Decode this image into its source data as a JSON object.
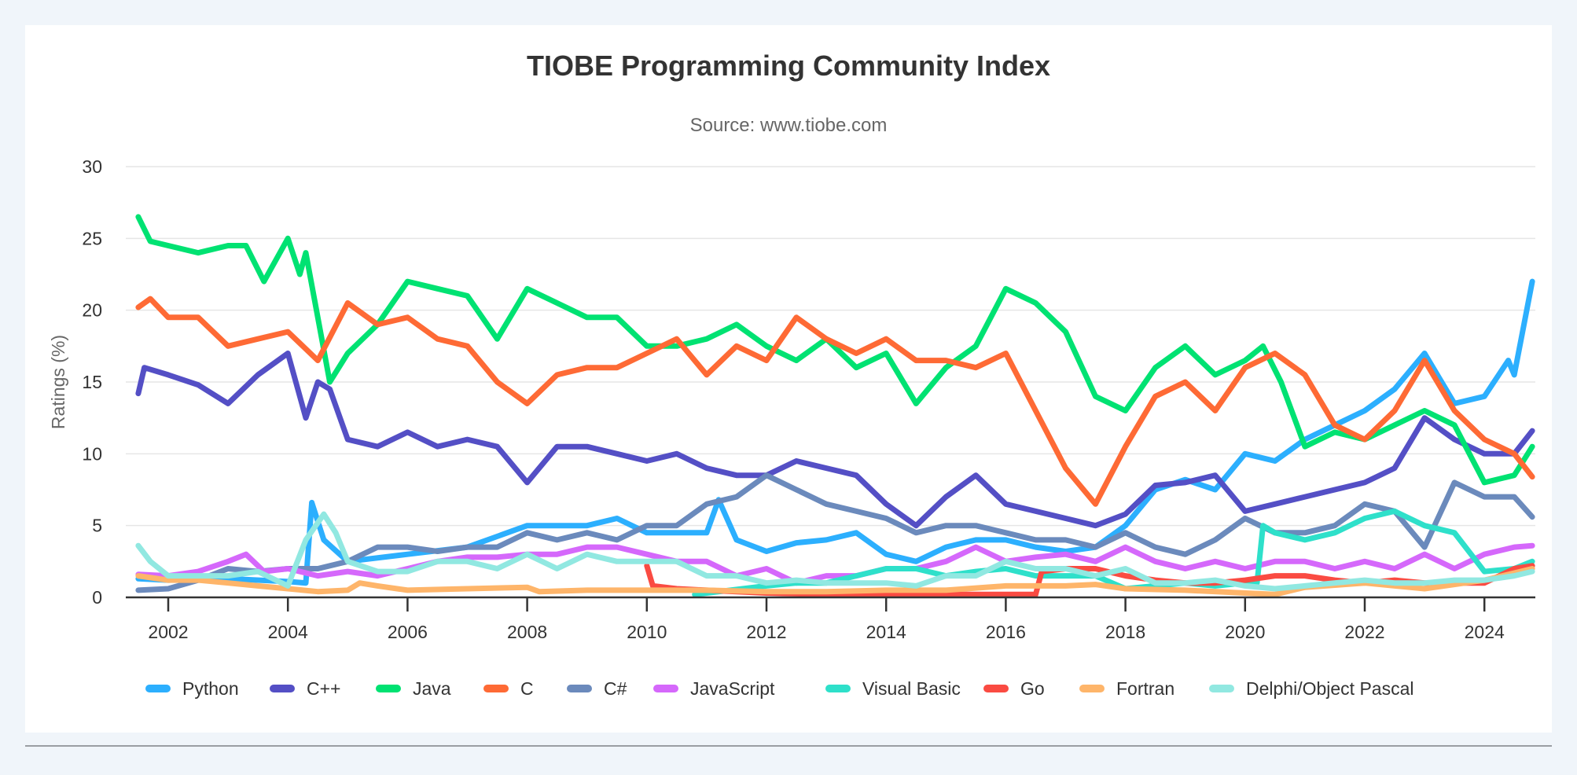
{
  "chart_data": {
    "type": "line",
    "title": "TIOBE Programming Community Index",
    "subtitle": "Source: www.tiobe.com",
    "xlabel": "",
    "ylabel": "Ratings (%)",
    "xlim": [
      2001.5,
      2024.8
    ],
    "ylim": [
      0,
      30
    ],
    "yticks": [
      0,
      5,
      10,
      15,
      20,
      25,
      30
    ],
    "xticks": [
      2002,
      2004,
      2006,
      2008,
      2010,
      2012,
      2014,
      2016,
      2018,
      2020,
      2022,
      2024
    ],
    "grid": true,
    "legend": "bottom",
    "series": [
      {
        "name": "Python",
        "color": "#2caffe",
        "x": [
          2001.5,
          2002,
          2003,
          2004,
          2004.3,
          2004.4,
          2004.6,
          2005,
          2006,
          2007,
          2008,
          2008.5,
          2009,
          2009.5,
          2010,
          2011,
          2011.2,
          2011.5,
          2012,
          2012.5,
          2013,
          2013.5,
          2014,
          2014.5,
          2015,
          2015.5,
          2016,
          2016.5,
          2017,
          2017.5,
          2018,
          2018.5,
          2019,
          2019.5,
          2020,
          2020.5,
          2021,
          2021.5,
          2022,
          2022.5,
          2023,
          2023.5,
          2024,
          2024.4,
          2024.5,
          2024.8
        ],
        "y": [
          1.3,
          1.2,
          1.3,
          1.1,
          1.0,
          6.6,
          4.0,
          2.5,
          3.0,
          3.5,
          5.0,
          5.0,
          5.0,
          5.5,
          4.5,
          4.5,
          6.8,
          4.0,
          3.2,
          3.8,
          4.0,
          4.5,
          3.0,
          2.5,
          3.5,
          4.0,
          4.0,
          3.5,
          3.2,
          3.5,
          5.0,
          7.5,
          8.2,
          7.5,
          10.0,
          9.5,
          11.0,
          12.0,
          13.0,
          14.5,
          17.0,
          13.5,
          14.0,
          16.5,
          15.5,
          22.0
        ]
      },
      {
        "name": "C++",
        "color": "#544fc5",
        "x": [
          2001.5,
          2001.6,
          2002,
          2002.5,
          2003,
          2003.5,
          2004,
          2004.3,
          2004.5,
          2004.7,
          2005,
          2005.5,
          2006,
          2006.5,
          2007,
          2007.5,
          2008,
          2008.5,
          2009,
          2009.5,
          2010,
          2010.5,
          2011,
          2011.5,
          2012,
          2012.5,
          2013,
          2013.5,
          2014,
          2014.5,
          2015,
          2015.5,
          2016,
          2016.5,
          2017,
          2017.5,
          2018,
          2018.5,
          2019,
          2019.5,
          2020,
          2020.5,
          2021,
          2021.5,
          2022,
          2022.5,
          2023,
          2023.5,
          2024,
          2024.5,
          2024.8
        ],
        "y": [
          14.2,
          16.0,
          15.5,
          14.8,
          13.5,
          15.5,
          17.0,
          12.5,
          15.0,
          14.5,
          11.0,
          10.5,
          11.5,
          10.5,
          11.0,
          10.5,
          8.0,
          10.5,
          10.5,
          10.0,
          9.5,
          10.0,
          9.0,
          8.5,
          8.5,
          9.5,
          9.0,
          8.5,
          6.5,
          5.0,
          7.0,
          8.5,
          6.5,
          6.0,
          5.5,
          5.0,
          5.8,
          7.8,
          8.0,
          8.5,
          6.0,
          6.5,
          7.0,
          7.5,
          8.0,
          9.0,
          12.5,
          11.0,
          10.0,
          10.0,
          11.6
        ]
      },
      {
        "name": "Java",
        "color": "#00e272",
        "x": [
          2001.5,
          2001.7,
          2002,
          2002.5,
          2003,
          2003.3,
          2003.6,
          2004,
          2004.2,
          2004.3,
          2004.7,
          2005,
          2005.5,
          2006,
          2006.5,
          2007,
          2007.5,
          2008,
          2008.5,
          2009,
          2009.5,
          2010,
          2010.5,
          2011,
          2011.5,
          2012,
          2012.5,
          2013,
          2013.5,
          2014,
          2014.5,
          2015,
          2015.5,
          2016,
          2016.5,
          2017,
          2017.5,
          2018,
          2018.5,
          2019,
          2019.5,
          2020,
          2020.3,
          2020.6,
          2021,
          2021.5,
          2022,
          2022.5,
          2023,
          2023.5,
          2024,
          2024.5,
          2024.8
        ],
        "y": [
          26.5,
          24.8,
          24.5,
          24.0,
          24.5,
          24.5,
          22.0,
          25.0,
          22.5,
          24.0,
          15.0,
          17.0,
          19.0,
          22.0,
          21.5,
          21.0,
          18.0,
          21.5,
          20.5,
          19.5,
          19.5,
          17.5,
          17.5,
          18.0,
          19.0,
          17.5,
          16.5,
          18.0,
          16.0,
          17.0,
          13.5,
          16.0,
          17.5,
          21.5,
          20.5,
          18.5,
          14.0,
          13.0,
          16.0,
          17.5,
          15.5,
          16.5,
          17.5,
          15.0,
          10.5,
          11.5,
          11.0,
          12.0,
          13.0,
          12.0,
          8.0,
          8.5,
          10.5
        ]
      },
      {
        "name": "C",
        "color": "#fe6a35",
        "x": [
          2001.5,
          2001.7,
          2002,
          2002.5,
          2003,
          2003.5,
          2004,
          2004.5,
          2005,
          2005.5,
          2006,
          2006.5,
          2007,
          2007.5,
          2008,
          2008.5,
          2009,
          2009.5,
          2010,
          2010.5,
          2011,
          2011.5,
          2012,
          2012.5,
          2013,
          2013.5,
          2014,
          2014.5,
          2015,
          2015.5,
          2016,
          2016.5,
          2017,
          2017.5,
          2018,
          2018.5,
          2019,
          2019.5,
          2020,
          2020.5,
          2021,
          2021.5,
          2022,
          2022.5,
          2023,
          2023.5,
          2024,
          2024.5,
          2024.8
        ],
        "y": [
          20.2,
          20.8,
          19.5,
          19.5,
          17.5,
          18.0,
          18.5,
          16.5,
          20.5,
          19.0,
          19.5,
          18.0,
          17.5,
          15.0,
          13.5,
          15.5,
          16.0,
          16.0,
          17.0,
          18.0,
          15.5,
          17.5,
          16.5,
          19.5,
          18.0,
          17.0,
          18.0,
          16.5,
          16.5,
          16.0,
          17.0,
          13.0,
          9.0,
          6.5,
          10.5,
          14.0,
          15.0,
          13.0,
          16.0,
          17.0,
          15.5,
          12.0,
          11.0,
          13.0,
          16.5,
          13.0,
          11.0,
          10.0,
          8.4
        ]
      },
      {
        "name": "C#",
        "color": "#6b8abc",
        "x": [
          2001.5,
          2002,
          2002.5,
          2003,
          2003.5,
          2004,
          2004.5,
          2005,
          2005.5,
          2006,
          2006.5,
          2007,
          2007.5,
          2008,
          2008.5,
          2009,
          2009.5,
          2010,
          2010.5,
          2011,
          2011.5,
          2012,
          2012.5,
          2013,
          2013.5,
          2014,
          2014.5,
          2015,
          2015.5,
          2016,
          2016.5,
          2017,
          2017.5,
          2018,
          2018.5,
          2019,
          2019.5,
          2020,
          2020.5,
          2021,
          2021.5,
          2022,
          2022.5,
          2023,
          2023.5,
          2024,
          2024.5,
          2024.8
        ],
        "y": [
          0.5,
          0.6,
          1.2,
          2.0,
          1.8,
          2.0,
          2.0,
          2.5,
          3.5,
          3.5,
          3.2,
          3.5,
          3.5,
          4.5,
          4.0,
          4.5,
          4.0,
          5.0,
          5.0,
          6.5,
          7.0,
          8.5,
          7.5,
          6.5,
          6.0,
          5.5,
          4.5,
          5.0,
          5.0,
          4.5,
          4.0,
          4.0,
          3.5,
          4.5,
          3.5,
          3.0,
          4.0,
          5.5,
          4.5,
          4.5,
          5.0,
          6.5,
          6.0,
          3.5,
          8.0,
          7.0,
          7.0,
          5.6
        ]
      },
      {
        "name": "JavaScript",
        "color": "#d568fb",
        "x": [
          2001.5,
          2002,
          2002.5,
          2003,
          2003.3,
          2003.6,
          2004,
          2004.5,
          2005,
          2005.5,
          2006,
          2006.5,
          2007,
          2007.5,
          2008,
          2008.5,
          2009,
          2009.5,
          2010,
          2010.5,
          2011,
          2011.5,
          2012,
          2012.5,
          2013,
          2013.5,
          2014,
          2014.5,
          2015,
          2015.5,
          2016,
          2016.5,
          2017,
          2017.5,
          2018,
          2018.5,
          2019,
          2019.5,
          2020,
          2020.5,
          2021,
          2021.5,
          2022,
          2022.5,
          2023,
          2023.5,
          2024,
          2024.5,
          2024.8
        ],
        "y": [
          1.6,
          1.5,
          1.8,
          2.5,
          3.0,
          1.8,
          2.0,
          1.5,
          1.8,
          1.5,
          2.0,
          2.5,
          2.8,
          2.8,
          3.0,
          3.0,
          3.5,
          3.5,
          3.0,
          2.5,
          2.5,
          1.5,
          2.0,
          1.0,
          1.5,
          1.5,
          2.0,
          2.0,
          2.5,
          3.5,
          2.5,
          2.8,
          3.0,
          2.5,
          3.5,
          2.5,
          2.0,
          2.5,
          2.0,
          2.5,
          2.5,
          2.0,
          2.5,
          2.0,
          3.0,
          2.0,
          3.0,
          3.5,
          3.6
        ]
      },
      {
        "name": "Visual Basic",
        "color": "#2ee0ca",
        "x": [
          2010.8,
          2011,
          2012,
          2012.5,
          2013,
          2013.5,
          2014,
          2014.5,
          2015,
          2015.5,
          2016,
          2016.5,
          2017,
          2017.5,
          2018,
          2018.5,
          2019,
          2019.5,
          2020,
          2020.2,
          2020.3,
          2020.5,
          2021,
          2021.5,
          2022,
          2022.5,
          2023,
          2023.5,
          2024,
          2024.5,
          2024.8
        ],
        "y": [
          0.2,
          0.3,
          0.8,
          1.0,
          1.0,
          1.5,
          2.0,
          2.0,
          1.5,
          1.8,
          2.0,
          1.5,
          1.5,
          1.5,
          0.6,
          0.8,
          1.0,
          0.8,
          1.0,
          1.0,
          5.0,
          4.5,
          4.0,
          4.5,
          5.5,
          6.0,
          5.0,
          4.5,
          1.8,
          2.0,
          2.5
        ]
      },
      {
        "name": "Go",
        "color": "#fa4b42",
        "x": [
          2010,
          2010.1,
          2010.5,
          2011,
          2011.5,
          2012,
          2013,
          2014,
          2015,
          2016,
          2016.5,
          2016.6,
          2017,
          2017.5,
          2018,
          2018.5,
          2019,
          2019.5,
          2020,
          2020.5,
          2021,
          2021.5,
          2022,
          2022.5,
          2023,
          2023.5,
          2024,
          2024.5,
          2024.8
        ],
        "y": [
          2.2,
          0.8,
          0.6,
          0.5,
          0.4,
          0.3,
          0.2,
          0.2,
          0.2,
          0.2,
          0.2,
          1.8,
          2.0,
          2.0,
          1.5,
          1.2,
          1.0,
          1.0,
          1.2,
          1.5,
          1.5,
          1.2,
          1.0,
          1.2,
          1.0,
          1.0,
          1.0,
          2.0,
          2.2
        ]
      },
      {
        "name": "Fortran",
        "color": "#feb56a",
        "x": [
          2001.5,
          2002,
          2002.5,
          2003,
          2003.5,
          2004,
          2004.5,
          2005,
          2005.2,
          2005.5,
          2006,
          2007,
          2008,
          2008.2,
          2009,
          2010,
          2011,
          2012,
          2013,
          2014,
          2015,
          2016,
          2017,
          2017.5,
          2018,
          2019,
          2020,
          2020.5,
          2021,
          2022,
          2023,
          2024,
          2024.8
        ],
        "y": [
          1.5,
          1.2,
          1.2,
          1.0,
          0.8,
          0.6,
          0.4,
          0.5,
          1.0,
          0.8,
          0.5,
          0.6,
          0.7,
          0.4,
          0.5,
          0.5,
          0.5,
          0.4,
          0.4,
          0.5,
          0.5,
          0.8,
          0.8,
          0.9,
          0.6,
          0.5,
          0.3,
          0.2,
          0.7,
          1.0,
          0.6,
          1.2,
          2.0
        ]
      },
      {
        "name": "Delphi/Object Pascal",
        "color": "#91e8e1",
        "x": [
          2001.5,
          2001.7,
          2002,
          2002.5,
          2003,
          2003.5,
          2004,
          2004.3,
          2004.6,
          2004.8,
          2005,
          2005.5,
          2006,
          2006.5,
          2007,
          2007.5,
          2008,
          2008.5,
          2009,
          2009.5,
          2010,
          2010.5,
          2011,
          2011.5,
          2012,
          2012.5,
          2013,
          2013.5,
          2014,
          2014.5,
          2015,
          2015.5,
          2016,
          2016.5,
          2017,
          2017.5,
          2018,
          2018.5,
          2019,
          2019.5,
          2020,
          2020.5,
          2021,
          2021.5,
          2022,
          2022.5,
          2023,
          2023.5,
          2024,
          2024.5,
          2024.8
        ],
        "y": [
          3.6,
          2.5,
          1.5,
          1.5,
          1.5,
          1.8,
          0.8,
          4.0,
          5.8,
          4.5,
          2.5,
          1.8,
          1.8,
          2.5,
          2.5,
          2.0,
          3.0,
          2.0,
          3.0,
          2.5,
          2.5,
          2.5,
          1.5,
          1.5,
          1.0,
          1.2,
          1.0,
          1.0,
          1.0,
          0.8,
          1.5,
          1.5,
          2.5,
          2.0,
          2.0,
          1.5,
          2.0,
          1.0,
          1.0,
          1.2,
          0.8,
          0.6,
          0.8,
          1.0,
          1.2,
          1.0,
          1.0,
          1.2,
          1.2,
          1.5,
          1.8
        ]
      }
    ]
  }
}
